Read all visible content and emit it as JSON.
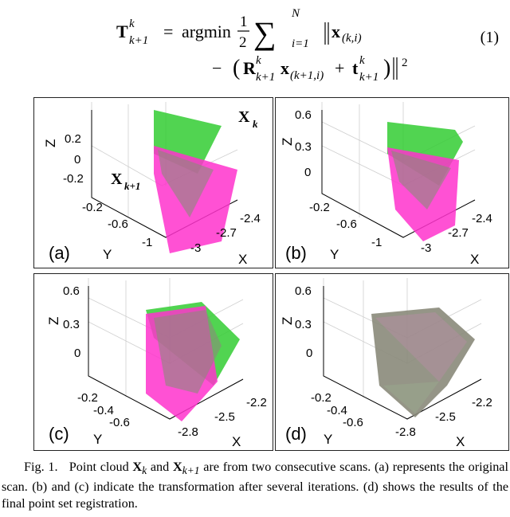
{
  "equation": {
    "lhs_T": "T",
    "lhs_sup": "k",
    "lhs_sub": "k+1",
    "eq": "=",
    "argmin": "argmin",
    "half_num": "1",
    "half_den": "2",
    "sum_sup": "N",
    "sum_sub": "i=1",
    "x_k_i": "x",
    "x_k_i_sub": "(k,i)",
    "minus": "−",
    "R": "R",
    "R_sup": "k",
    "R_sub": "k+1",
    "x_k1_i": "x",
    "x_k1_i_sub": "(k+1,i)",
    "plus": "+",
    "t": "t",
    "t_sup": "k",
    "t_sub": "k+1",
    "power": "2",
    "number": "(1)"
  },
  "panels": [
    {
      "id": "a",
      "label": "(a)",
      "z_ticks": [
        "0.2",
        "0",
        "-0.2"
      ],
      "y_ticks": [
        "-0.2",
        "-0.6",
        "-1"
      ],
      "x_ticks": [
        "-3",
        "-2.7",
        "-2.4"
      ],
      "axis_labels": {
        "x": "X",
        "y": "Y",
        "z": "Z"
      },
      "cloud_labels": {
        "xk": "X",
        "xk_sub": "k",
        "xk1": "X",
        "xk1_sub": "k+1"
      }
    },
    {
      "id": "b",
      "label": "(b)",
      "z_ticks": [
        "0.6",
        "0.3",
        "0"
      ],
      "y_ticks": [
        "-0.2",
        "-0.6",
        "-1"
      ],
      "x_ticks": [
        "-3",
        "-2.7",
        "-2.4"
      ],
      "axis_labels": {
        "x": "X",
        "y": "Y",
        "z": "Z"
      }
    },
    {
      "id": "c",
      "label": "(c)",
      "z_ticks": [
        "0.6",
        "0.3",
        "0"
      ],
      "y_ticks": [
        "-0.2",
        "-0.4",
        "-0.6"
      ],
      "x_ticks": [
        "-2.8",
        "-2.5",
        "-2.2"
      ],
      "axis_labels": {
        "x": "X",
        "y": "Y",
        "z": "Z"
      }
    },
    {
      "id": "d",
      "label": "(d)",
      "z_ticks": [
        "0.6",
        "0.3",
        "0"
      ],
      "y_ticks": [
        "-0.2",
        "-0.4",
        "-0.6"
      ],
      "x_ticks": [
        "-2.8",
        "-2.5",
        "-2.2"
      ],
      "axis_labels": {
        "x": "X",
        "y": "Y",
        "z": "Z"
      }
    }
  ],
  "colors": {
    "green": "#33cc33",
    "magenta": "#ff33cc",
    "overlap": "#8a8a7a"
  },
  "caption": {
    "fig": "Fig. 1.",
    "t1": "Point cloud ",
    "x1": "X",
    "x1_sub": "k",
    "and": " and ",
    "x2": "X",
    "x2_sub": "k+1",
    "t2": " are from two consecutive scans. (a) represents the original scan. (b) and (c) indicate the transformation after several iterations. (d) shows the results of the final point set registration."
  }
}
